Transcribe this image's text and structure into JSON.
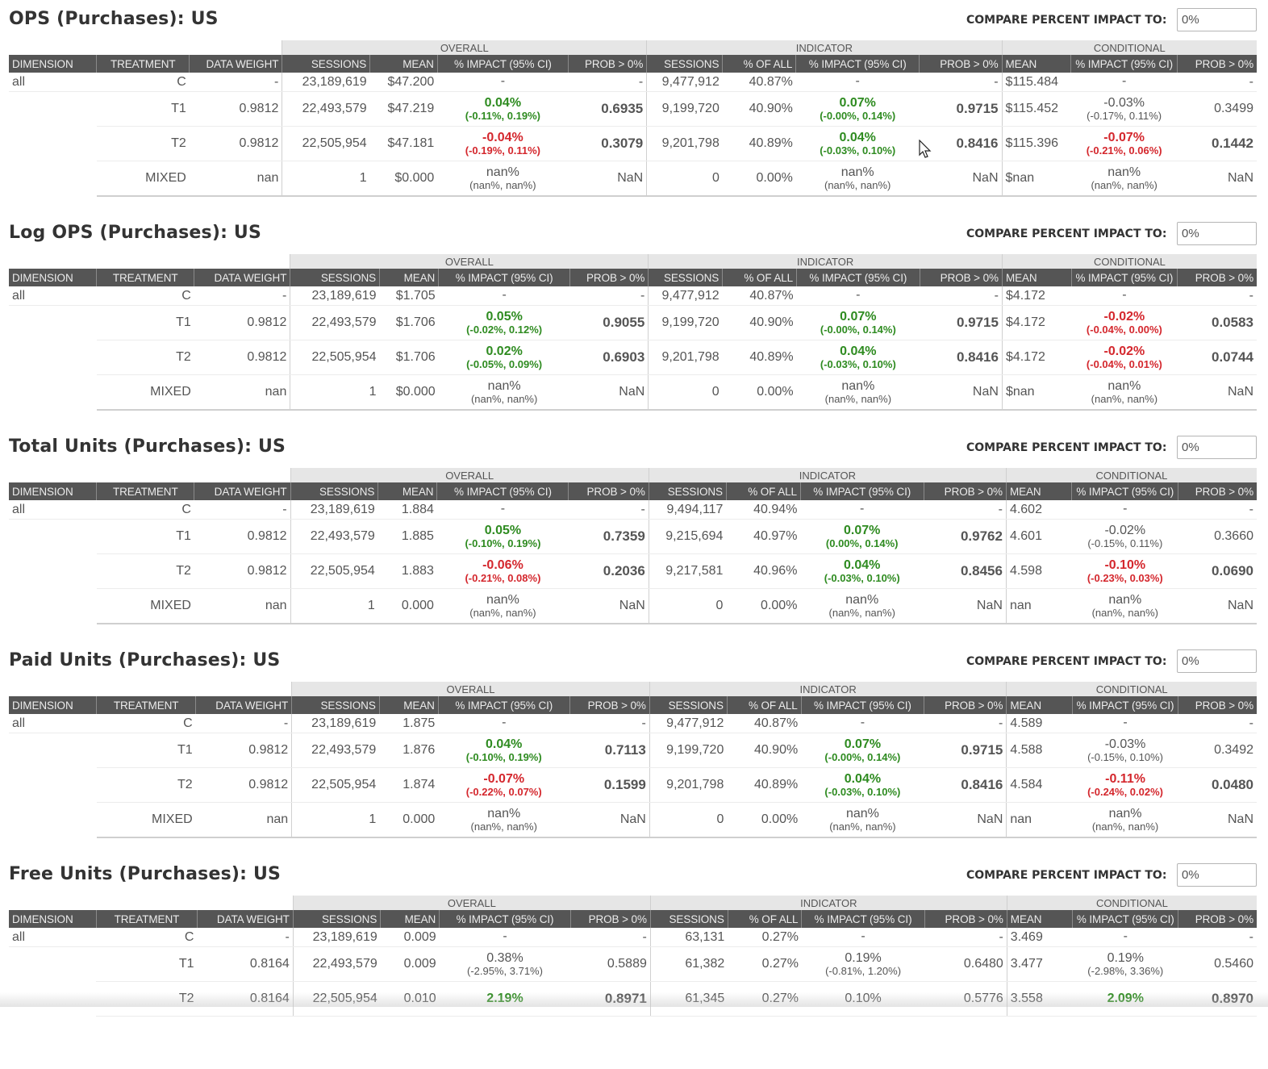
{
  "sections": [
    {
      "title": "OPS (Purchases): US",
      "compare_label": "COMPARE PERCENT IMPACT TO:",
      "compare_value": "0%",
      "groups": {
        "overall": "OVERALL",
        "indicator": "INDICATOR",
        "conditional": "CONDITIONAL"
      },
      "headers": [
        "DIMENSION",
        "TREATMENT",
        "DATA WEIGHT",
        "SESSIONS",
        "MEAN",
        "% IMPACT (95% CI)",
        "PROB > 0%",
        "SESSIONS",
        "% OF ALL",
        "% IMPACT (95% CI)",
        "PROB > 0%",
        "MEAN",
        "% IMPACT (95% CI)",
        "PROB > 0%"
      ],
      "rows": [
        {
          "dim": "all",
          "trt": "C",
          "dw": "-",
          "o_sess": "23,189,619",
          "o_mean": "$47.200",
          "o_imp": "-",
          "o_ci": "",
          "o_imp_color": "neutral",
          "o_prob": "-",
          "o_prob_color": "neutral",
          "i_sess": "9,477,912",
          "i_pct": "40.87%",
          "i_imp": "-",
          "i_ci": "",
          "i_imp_color": "neutral",
          "i_prob": "-",
          "i_prob_color": "neutral",
          "c_mean": "$115.484",
          "c_imp": "-",
          "c_ci": "",
          "c_imp_color": "neutral",
          "c_prob": "-",
          "c_prob_color": "neutral"
        },
        {
          "dim": "",
          "trt": "T1",
          "dw": "0.9812",
          "o_sess": "22,493,579",
          "o_mean": "$47.219",
          "o_imp": "0.04%",
          "o_ci": "(-0.11%, 0.19%)",
          "o_imp_color": "green",
          "o_prob": "0.6935",
          "o_prob_color": "green",
          "i_sess": "9,199,720",
          "i_pct": "40.90%",
          "i_imp": "0.07%",
          "i_ci": "(-0.00%, 0.14%)",
          "i_imp_color": "green",
          "i_prob": "0.9715",
          "i_prob_color": "green",
          "c_mean": "$115.452",
          "c_imp": "-0.03%",
          "c_ci": "(-0.17%, 0.11%)",
          "c_imp_color": "neutral",
          "c_prob": "0.3499",
          "c_prob_color": "neutral"
        },
        {
          "dim": "",
          "trt": "T2",
          "dw": "0.9812",
          "o_sess": "22,505,954",
          "o_mean": "$47.181",
          "o_imp": "-0.04%",
          "o_ci": "(-0.19%, 0.11%)",
          "o_imp_color": "red",
          "o_prob": "0.3079",
          "o_prob_color": "red",
          "i_sess": "9,201,798",
          "i_pct": "40.89%",
          "i_imp": "0.04%",
          "i_ci": "(-0.03%, 0.10%)",
          "i_imp_color": "green",
          "i_prob": "0.8416",
          "i_prob_color": "green",
          "c_mean": "$115.396",
          "c_imp": "-0.07%",
          "c_ci": "(-0.21%, 0.06%)",
          "c_imp_color": "red",
          "c_prob": "0.1442",
          "c_prob_color": "red"
        },
        {
          "dim": "",
          "trt": "MIXED",
          "dw": "nan",
          "o_sess": "1",
          "o_mean": "$0.000",
          "o_imp": "nan%",
          "o_ci": "(nan%, nan%)",
          "o_imp_color": "neutral",
          "o_prob": "NaN",
          "o_prob_color": "neutral",
          "i_sess": "0",
          "i_pct": "0.00%",
          "i_imp": "nan%",
          "i_ci": "(nan%, nan%)",
          "i_imp_color": "neutral",
          "i_prob": "NaN",
          "i_prob_color": "neutral",
          "c_mean": "$nan",
          "c_imp": "nan%",
          "c_ci": "(nan%, nan%)",
          "c_imp_color": "neutral",
          "c_prob": "NaN",
          "c_prob_color": "neutral"
        }
      ]
    },
    {
      "title": "Log OPS (Purchases): US",
      "compare_label": "COMPARE PERCENT IMPACT TO:",
      "compare_value": "0%",
      "groups": {
        "overall": "OVERALL",
        "indicator": "INDICATOR",
        "conditional": "CONDITIONAL"
      },
      "headers": [
        "DIMENSION",
        "TREATMENT",
        "DATA WEIGHT",
        "SESSIONS",
        "MEAN",
        "% IMPACT (95% CI)",
        "PROB > 0%",
        "SESSIONS",
        "% OF ALL",
        "% IMPACT (95% CI)",
        "PROB > 0%",
        "MEAN",
        "% IMPACT (95% CI)",
        "PROB > 0%"
      ],
      "rows": [
        {
          "dim": "all",
          "trt": "C",
          "dw": "-",
          "o_sess": "23,189,619",
          "o_mean": "$1.705",
          "o_imp": "-",
          "o_ci": "",
          "o_imp_color": "neutral",
          "o_prob": "-",
          "o_prob_color": "neutral",
          "i_sess": "9,477,912",
          "i_pct": "40.87%",
          "i_imp": "-",
          "i_ci": "",
          "i_imp_color": "neutral",
          "i_prob": "-",
          "i_prob_color": "neutral",
          "c_mean": "$4.172",
          "c_imp": "-",
          "c_ci": "",
          "c_imp_color": "neutral",
          "c_prob": "-",
          "c_prob_color": "neutral"
        },
        {
          "dim": "",
          "trt": "T1",
          "dw": "0.9812",
          "o_sess": "22,493,579",
          "o_mean": "$1.706",
          "o_imp": "0.05%",
          "o_ci": "(-0.02%, 0.12%)",
          "o_imp_color": "green",
          "o_prob": "0.9055",
          "o_prob_color": "green",
          "i_sess": "9,199,720",
          "i_pct": "40.90%",
          "i_imp": "0.07%",
          "i_ci": "(-0.00%, 0.14%)",
          "i_imp_color": "green",
          "i_prob": "0.9715",
          "i_prob_color": "green",
          "c_mean": "$4.172",
          "c_imp": "-0.02%",
          "c_ci": "(-0.04%, 0.00%)",
          "c_imp_color": "red",
          "c_prob": "0.0583",
          "c_prob_color": "red"
        },
        {
          "dim": "",
          "trt": "T2",
          "dw": "0.9812",
          "o_sess": "22,505,954",
          "o_mean": "$1.706",
          "o_imp": "0.02%",
          "o_ci": "(-0.05%, 0.09%)",
          "o_imp_color": "green",
          "o_prob": "0.6903",
          "o_prob_color": "green",
          "i_sess": "9,201,798",
          "i_pct": "40.89%",
          "i_imp": "0.04%",
          "i_ci": "(-0.03%, 0.10%)",
          "i_imp_color": "green",
          "i_prob": "0.8416",
          "i_prob_color": "green",
          "c_mean": "$4.172",
          "c_imp": "-0.02%",
          "c_ci": "(-0.04%, 0.01%)",
          "c_imp_color": "red",
          "c_prob": "0.0744",
          "c_prob_color": "red"
        },
        {
          "dim": "",
          "trt": "MIXED",
          "dw": "nan",
          "o_sess": "1",
          "o_mean": "$0.000",
          "o_imp": "nan%",
          "o_ci": "(nan%, nan%)",
          "o_imp_color": "neutral",
          "o_prob": "NaN",
          "o_prob_color": "neutral",
          "i_sess": "0",
          "i_pct": "0.00%",
          "i_imp": "nan%",
          "i_ci": "(nan%, nan%)",
          "i_imp_color": "neutral",
          "i_prob": "NaN",
          "i_prob_color": "neutral",
          "c_mean": "$nan",
          "c_imp": "nan%",
          "c_ci": "(nan%, nan%)",
          "c_imp_color": "neutral",
          "c_prob": "NaN",
          "c_prob_color": "neutral"
        }
      ]
    },
    {
      "title": "Total Units (Purchases): US",
      "compare_label": "COMPARE PERCENT IMPACT TO:",
      "compare_value": "0%",
      "groups": {
        "overall": "OVERALL",
        "indicator": "INDICATOR",
        "conditional": "CONDITIONAL"
      },
      "headers": [
        "DIMENSION",
        "TREATMENT",
        "DATA WEIGHT",
        "SESSIONS",
        "MEAN",
        "% IMPACT (95% CI)",
        "PROB > 0%",
        "SESSIONS",
        "% OF ALL",
        "% IMPACT (95% CI)",
        "PROB > 0%",
        "MEAN",
        "% IMPACT (95% CI)",
        "PROB > 0%"
      ],
      "rows": [
        {
          "dim": "all",
          "trt": "C",
          "dw": "-",
          "o_sess": "23,189,619",
          "o_mean": "1.884",
          "o_imp": "-",
          "o_ci": "",
          "o_imp_color": "neutral",
          "o_prob": "-",
          "o_prob_color": "neutral",
          "i_sess": "9,494,117",
          "i_pct": "40.94%",
          "i_imp": "-",
          "i_ci": "",
          "i_imp_color": "neutral",
          "i_prob": "-",
          "i_prob_color": "neutral",
          "c_mean": "4.602",
          "c_imp": "-",
          "c_ci": "",
          "c_imp_color": "neutral",
          "c_prob": "-",
          "c_prob_color": "neutral"
        },
        {
          "dim": "",
          "trt": "T1",
          "dw": "0.9812",
          "o_sess": "22,493,579",
          "o_mean": "1.885",
          "o_imp": "0.05%",
          "o_ci": "(-0.10%, 0.19%)",
          "o_imp_color": "green",
          "o_prob": "0.7359",
          "o_prob_color": "green",
          "i_sess": "9,215,694",
          "i_pct": "40.97%",
          "i_imp": "0.07%",
          "i_ci": "(0.00%, 0.14%)",
          "i_imp_color": "green",
          "i_prob": "0.9762",
          "i_prob_color": "green",
          "c_mean": "4.601",
          "c_imp": "-0.02%",
          "c_ci": "(-0.15%, 0.11%)",
          "c_imp_color": "neutral",
          "c_prob": "0.3660",
          "c_prob_color": "neutral"
        },
        {
          "dim": "",
          "trt": "T2",
          "dw": "0.9812",
          "o_sess": "22,505,954",
          "o_mean": "1.883",
          "o_imp": "-0.06%",
          "o_ci": "(-0.21%, 0.08%)",
          "o_imp_color": "red",
          "o_prob": "0.2036",
          "o_prob_color": "red",
          "i_sess": "9,217,581",
          "i_pct": "40.96%",
          "i_imp": "0.04%",
          "i_ci": "(-0.03%, 0.10%)",
          "i_imp_color": "green",
          "i_prob": "0.8456",
          "i_prob_color": "green",
          "c_mean": "4.598",
          "c_imp": "-0.10%",
          "c_ci": "(-0.23%, 0.03%)",
          "c_imp_color": "red",
          "c_prob": "0.0690",
          "c_prob_color": "red"
        },
        {
          "dim": "",
          "trt": "MIXED",
          "dw": "nan",
          "o_sess": "1",
          "o_mean": "0.000",
          "o_imp": "nan%",
          "o_ci": "(nan%, nan%)",
          "o_imp_color": "neutral",
          "o_prob": "NaN",
          "o_prob_color": "neutral",
          "i_sess": "0",
          "i_pct": "0.00%",
          "i_imp": "nan%",
          "i_ci": "(nan%, nan%)",
          "i_imp_color": "neutral",
          "i_prob": "NaN",
          "i_prob_color": "neutral",
          "c_mean": "nan",
          "c_imp": "nan%",
          "c_ci": "(nan%, nan%)",
          "c_imp_color": "neutral",
          "c_prob": "NaN",
          "c_prob_color": "neutral"
        }
      ]
    },
    {
      "title": "Paid Units (Purchases): US",
      "compare_label": "COMPARE PERCENT IMPACT TO:",
      "compare_value": "0%",
      "groups": {
        "overall": "OVERALL",
        "indicator": "INDICATOR",
        "conditional": "CONDITIONAL"
      },
      "headers": [
        "DIMENSION",
        "TREATMENT",
        "DATA WEIGHT",
        "SESSIONS",
        "MEAN",
        "% IMPACT (95% CI)",
        "PROB > 0%",
        "SESSIONS",
        "% OF ALL",
        "% IMPACT (95% CI)",
        "PROB > 0%",
        "MEAN",
        "% IMPACT (95% CI)",
        "PROB > 0%"
      ],
      "rows": [
        {
          "dim": "all",
          "trt": "C",
          "dw": "-",
          "o_sess": "23,189,619",
          "o_mean": "1.875",
          "o_imp": "-",
          "o_ci": "",
          "o_imp_color": "neutral",
          "o_prob": "-",
          "o_prob_color": "neutral",
          "i_sess": "9,477,912",
          "i_pct": "40.87%",
          "i_imp": "-",
          "i_ci": "",
          "i_imp_color": "neutral",
          "i_prob": "-",
          "i_prob_color": "neutral",
          "c_mean": "4.589",
          "c_imp": "-",
          "c_ci": "",
          "c_imp_color": "neutral",
          "c_prob": "-",
          "c_prob_color": "neutral"
        },
        {
          "dim": "",
          "trt": "T1",
          "dw": "0.9812",
          "o_sess": "22,493,579",
          "o_mean": "1.876",
          "o_imp": "0.04%",
          "o_ci": "(-0.10%, 0.19%)",
          "o_imp_color": "green",
          "o_prob": "0.7113",
          "o_prob_color": "green",
          "i_sess": "9,199,720",
          "i_pct": "40.90%",
          "i_imp": "0.07%",
          "i_ci": "(-0.00%, 0.14%)",
          "i_imp_color": "green",
          "i_prob": "0.9715",
          "i_prob_color": "green",
          "c_mean": "4.588",
          "c_imp": "-0.03%",
          "c_ci": "(-0.15%, 0.10%)",
          "c_imp_color": "neutral",
          "c_prob": "0.3492",
          "c_prob_color": "neutral"
        },
        {
          "dim": "",
          "trt": "T2",
          "dw": "0.9812",
          "o_sess": "22,505,954",
          "o_mean": "1.874",
          "o_imp": "-0.07%",
          "o_ci": "(-0.22%, 0.07%)",
          "o_imp_color": "red",
          "o_prob": "0.1599",
          "o_prob_color": "red",
          "i_sess": "9,201,798",
          "i_pct": "40.89%",
          "i_imp": "0.04%",
          "i_ci": "(-0.03%, 0.10%)",
          "i_imp_color": "green",
          "i_prob": "0.8416",
          "i_prob_color": "green",
          "c_mean": "4.584",
          "c_imp": "-0.11%",
          "c_ci": "(-0.24%, 0.02%)",
          "c_imp_color": "red",
          "c_prob": "0.0480",
          "c_prob_color": "red"
        },
        {
          "dim": "",
          "trt": "MIXED",
          "dw": "nan",
          "o_sess": "1",
          "o_mean": "0.000",
          "o_imp": "nan%",
          "o_ci": "(nan%, nan%)",
          "o_imp_color": "neutral",
          "o_prob": "NaN",
          "o_prob_color": "neutral",
          "i_sess": "0",
          "i_pct": "0.00%",
          "i_imp": "nan%",
          "i_ci": "(nan%, nan%)",
          "i_imp_color": "neutral",
          "i_prob": "NaN",
          "i_prob_color": "neutral",
          "c_mean": "nan",
          "c_imp": "nan%",
          "c_ci": "(nan%, nan%)",
          "c_imp_color": "neutral",
          "c_prob": "NaN",
          "c_prob_color": "neutral"
        }
      ]
    },
    {
      "title": "Free Units (Purchases): US",
      "compare_label": "COMPARE PERCENT IMPACT TO:",
      "compare_value": "0%",
      "groups": {
        "overall": "OVERALL",
        "indicator": "INDICATOR",
        "conditional": "CONDITIONAL"
      },
      "headers": [
        "DIMENSION",
        "TREATMENT",
        "DATA WEIGHT",
        "SESSIONS",
        "MEAN",
        "% IMPACT (95% CI)",
        "PROB > 0%",
        "SESSIONS",
        "% OF ALL",
        "% IMPACT (95% CI)",
        "PROB > 0%",
        "MEAN",
        "% IMPACT (95% CI)",
        "PROB > 0%"
      ],
      "rows": [
        {
          "dim": "all",
          "trt": "C",
          "dw": "-",
          "o_sess": "23,189,619",
          "o_mean": "0.009",
          "o_imp": "-",
          "o_ci": "",
          "o_imp_color": "neutral",
          "o_prob": "-",
          "o_prob_color": "neutral",
          "i_sess": "63,131",
          "i_pct": "0.27%",
          "i_imp": "-",
          "i_ci": "",
          "i_imp_color": "neutral",
          "i_prob": "-",
          "i_prob_color": "neutral",
          "c_mean": "3.469",
          "c_imp": "-",
          "c_ci": "",
          "c_imp_color": "neutral",
          "c_prob": "-",
          "c_prob_color": "neutral"
        },
        {
          "dim": "",
          "trt": "T1",
          "dw": "0.8164",
          "o_sess": "22,493,579",
          "o_mean": "0.009",
          "o_imp": "0.38%",
          "o_ci": "(-2.95%, 3.71%)",
          "o_imp_color": "neutral",
          "o_prob": "0.5889",
          "o_prob_color": "neutral",
          "i_sess": "61,382",
          "i_pct": "0.27%",
          "i_imp": "0.19%",
          "i_ci": "(-0.81%, 1.20%)",
          "i_imp_color": "neutral",
          "i_prob": "0.6480",
          "i_prob_color": "neutral",
          "c_mean": "3.477",
          "c_imp": "0.19%",
          "c_ci": "(-2.98%, 3.36%)",
          "c_imp_color": "neutral",
          "c_prob": "0.5460",
          "c_prob_color": "neutral"
        },
        {
          "dim": "",
          "trt": "T2",
          "dw": "0.8164",
          "o_sess": "22,505,954",
          "o_mean": "0.010",
          "o_imp": "2.19%",
          "o_ci": "",
          "o_imp_color": "green",
          "o_prob": "0.8971",
          "o_prob_color": "green",
          "i_sess": "61,345",
          "i_pct": "0.27%",
          "i_imp": "0.10%",
          "i_ci": "",
          "i_imp_color": "neutral",
          "i_prob": "0.5776",
          "i_prob_color": "neutral",
          "c_mean": "3.558",
          "c_imp": "2.09%",
          "c_ci": "",
          "c_imp_color": "green",
          "c_prob": "0.8970",
          "c_prob_color": "green"
        }
      ]
    }
  ]
}
